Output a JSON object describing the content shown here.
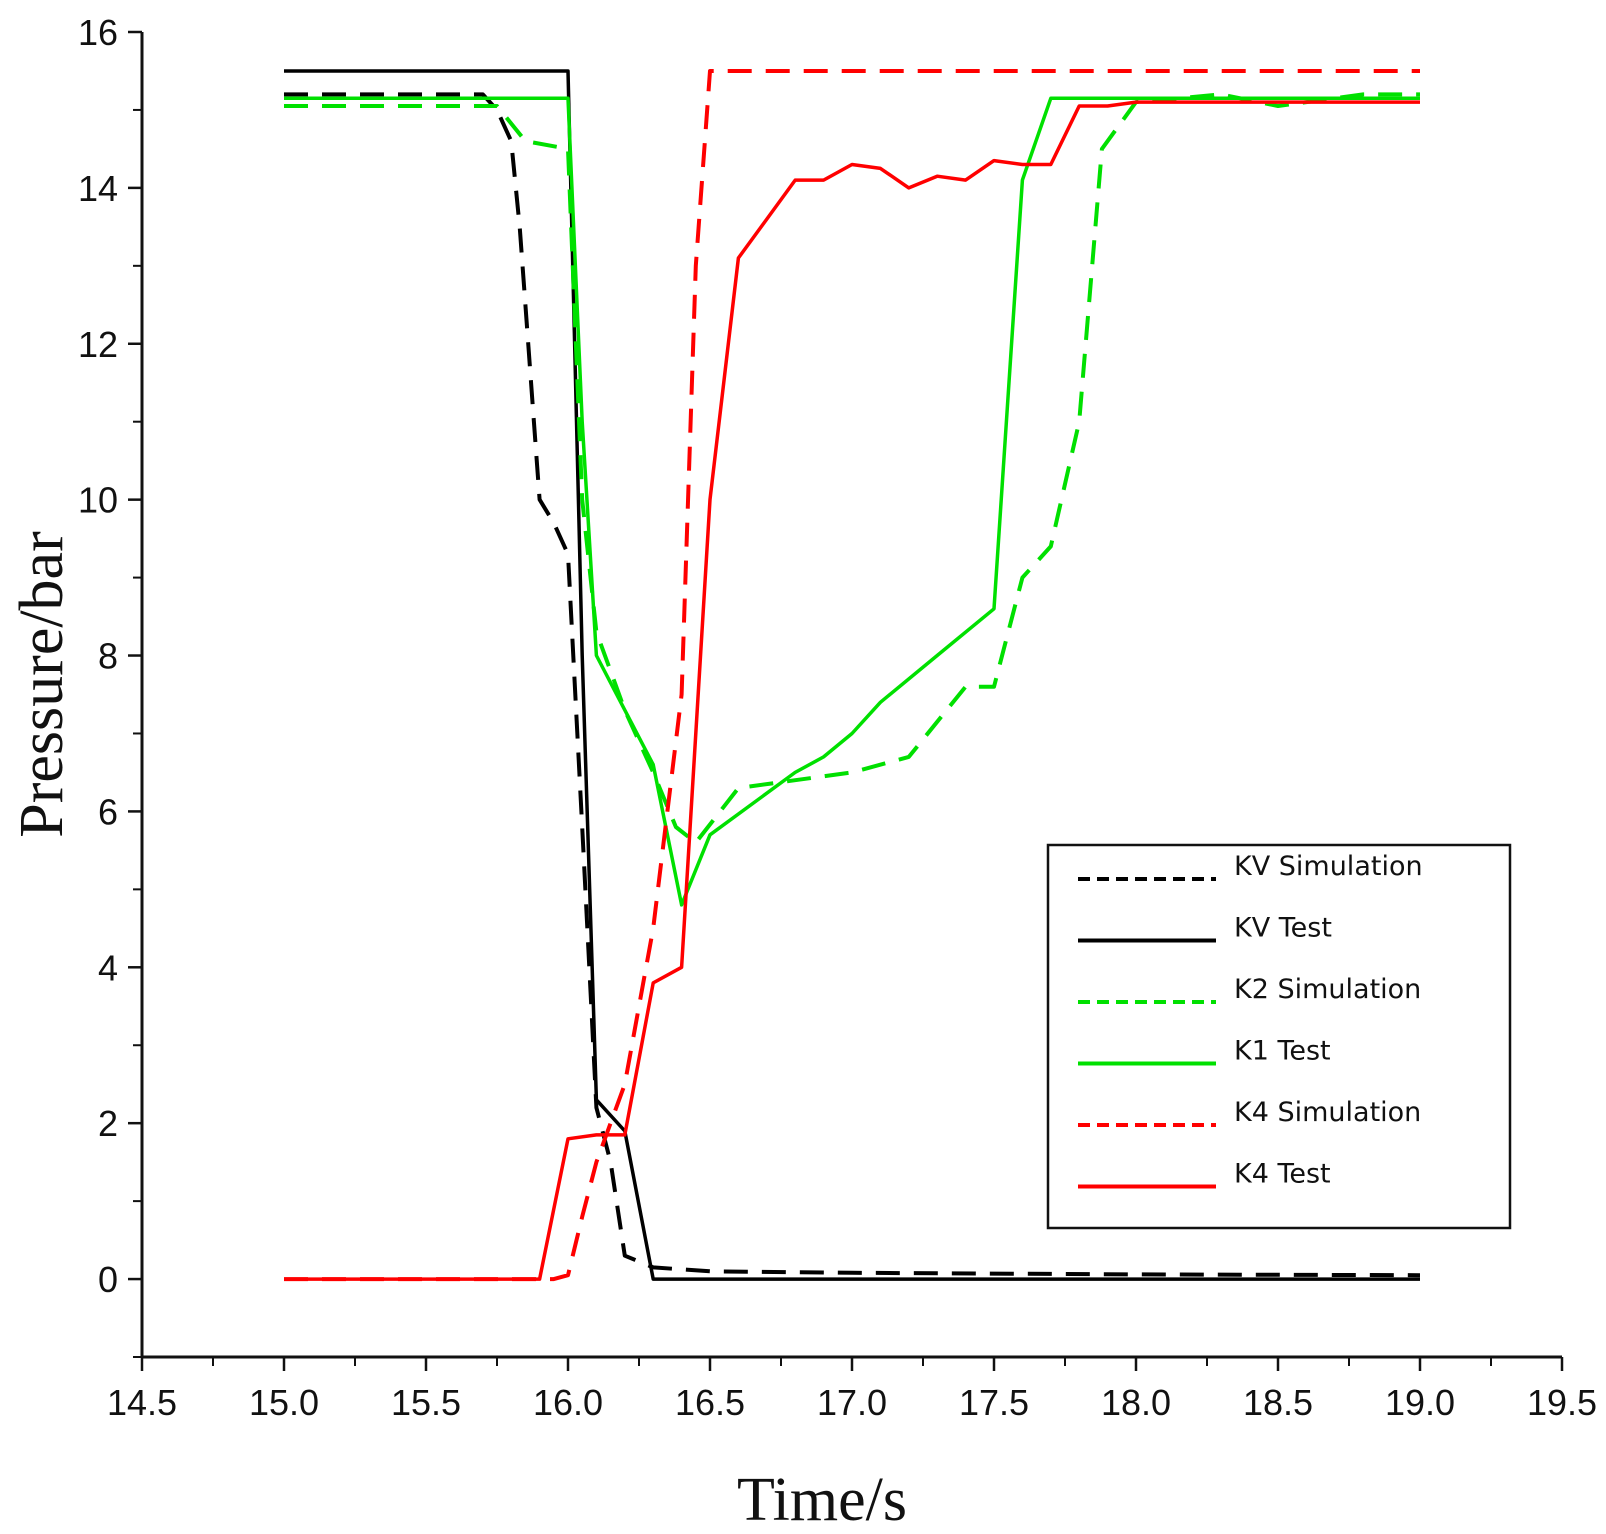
{
  "chart_data": {
    "type": "line",
    "title": "",
    "xlabel": "Time/s",
    "ylabel": "Pressure/bar",
    "xlim": [
      14.5,
      19.5
    ],
    "ylim": [
      -1,
      16
    ],
    "x_ticks": [
      14.5,
      15.0,
      15.5,
      16.0,
      16.5,
      17.0,
      17.5,
      18.0,
      18.5,
      19.0,
      19.5
    ],
    "x_tick_labels": [
      "14.5",
      "15.0",
      "15.5",
      "16.0",
      "16.5",
      "17.0",
      "17.5",
      "18.0",
      "18.5",
      "19.0",
      "19.5"
    ],
    "y_ticks": [
      0,
      2,
      4,
      6,
      8,
      10,
      12,
      14,
      16
    ],
    "y_tick_labels": [
      "0",
      "2",
      "4",
      "6",
      "8",
      "10",
      "12",
      "14",
      "16"
    ],
    "grid": false,
    "legend_position": "bottom-right",
    "series": [
      {
        "name": "KV Simulation",
        "color": "#000000",
        "style": "dashed",
        "points": [
          [
            15.0,
            15.2
          ],
          [
            15.7,
            15.2
          ],
          [
            15.75,
            15.0
          ],
          [
            15.8,
            14.6
          ],
          [
            15.83,
            13.5
          ],
          [
            15.85,
            12.5
          ],
          [
            15.88,
            11.0
          ],
          [
            15.9,
            10.0
          ],
          [
            15.95,
            9.7
          ],
          [
            16.0,
            9.3
          ],
          [
            16.05,
            5.8
          ],
          [
            16.1,
            2.2
          ],
          [
            16.15,
            1.5
          ],
          [
            16.2,
            0.3
          ],
          [
            16.3,
            0.15
          ],
          [
            16.5,
            0.1
          ],
          [
            17.0,
            0.08
          ],
          [
            18.0,
            0.06
          ],
          [
            19.0,
            0.05
          ]
        ]
      },
      {
        "name": "KV Test",
        "color": "#000000",
        "style": "solid",
        "points": [
          [
            15.0,
            15.5
          ],
          [
            16.0,
            15.5
          ],
          [
            16.05,
            8.0
          ],
          [
            16.1,
            2.3
          ],
          [
            16.2,
            1.9
          ],
          [
            16.3,
            0.0
          ],
          [
            17.0,
            0.0
          ],
          [
            18.0,
            0.0
          ],
          [
            19.0,
            0.0
          ]
        ]
      },
      {
        "name": "K2 Simulation",
        "color": "#00e000",
        "style": "dashed",
        "points": [
          [
            15.0,
            15.05
          ],
          [
            15.75,
            15.05
          ],
          [
            15.85,
            14.6
          ],
          [
            16.0,
            14.5
          ],
          [
            16.05,
            10.0
          ],
          [
            16.1,
            8.3
          ],
          [
            16.2,
            7.3
          ],
          [
            16.3,
            6.5
          ],
          [
            16.38,
            5.8
          ],
          [
            16.45,
            5.6
          ],
          [
            16.6,
            6.3
          ],
          [
            16.8,
            6.4
          ],
          [
            17.0,
            6.5
          ],
          [
            17.2,
            6.7
          ],
          [
            17.4,
            7.6
          ],
          [
            17.5,
            7.6
          ],
          [
            17.6,
            9.0
          ],
          [
            17.7,
            9.4
          ],
          [
            17.8,
            11.0
          ],
          [
            17.88,
            14.5
          ],
          [
            18.0,
            15.1
          ],
          [
            18.3,
            15.2
          ],
          [
            18.5,
            15.05
          ],
          [
            18.8,
            15.2
          ],
          [
            19.0,
            15.2
          ]
        ]
      },
      {
        "name": "K1 Test",
        "color": "#00e000",
        "style": "solid",
        "points": [
          [
            15.0,
            15.15
          ],
          [
            16.0,
            15.15
          ],
          [
            16.05,
            11.0
          ],
          [
            16.1,
            8.0
          ],
          [
            16.2,
            7.3
          ],
          [
            16.3,
            6.6
          ],
          [
            16.4,
            4.8
          ],
          [
            16.5,
            5.7
          ],
          [
            16.8,
            6.5
          ],
          [
            16.9,
            6.7
          ],
          [
            17.0,
            7.0
          ],
          [
            17.1,
            7.4
          ],
          [
            17.3,
            8.0
          ],
          [
            17.5,
            8.6
          ],
          [
            17.6,
            14.1
          ],
          [
            17.7,
            15.15
          ],
          [
            18.0,
            15.15
          ],
          [
            19.0,
            15.15
          ]
        ]
      },
      {
        "name": "K4 Simulation",
        "color": "#ff0000",
        "style": "dashed",
        "points": [
          [
            15.0,
            0.0
          ],
          [
            15.9,
            0.0
          ],
          [
            15.95,
            0.0
          ],
          [
            16.0,
            0.05
          ],
          [
            16.05,
            0.8
          ],
          [
            16.1,
            1.5
          ],
          [
            16.2,
            2.5
          ],
          [
            16.3,
            4.5
          ],
          [
            16.4,
            7.5
          ],
          [
            16.45,
            13.0
          ],
          [
            16.5,
            15.5
          ],
          [
            17.0,
            15.5
          ],
          [
            18.0,
            15.5
          ],
          [
            19.0,
            15.5
          ]
        ]
      },
      {
        "name": "K4 Test",
        "color": "#ff0000",
        "style": "solid",
        "points": [
          [
            15.0,
            0.0
          ],
          [
            15.9,
            0.0
          ],
          [
            16.0,
            1.8
          ],
          [
            16.1,
            1.85
          ],
          [
            16.2,
            1.85
          ],
          [
            16.3,
            3.8
          ],
          [
            16.4,
            4.0
          ],
          [
            16.5,
            10.0
          ],
          [
            16.6,
            13.1
          ],
          [
            16.7,
            13.6
          ],
          [
            16.8,
            14.1
          ],
          [
            16.9,
            14.1
          ],
          [
            17.0,
            14.3
          ],
          [
            17.1,
            14.25
          ],
          [
            17.2,
            14.0
          ],
          [
            17.3,
            14.15
          ],
          [
            17.4,
            14.1
          ],
          [
            17.5,
            14.35
          ],
          [
            17.6,
            14.3
          ],
          [
            17.7,
            14.3
          ],
          [
            17.8,
            15.05
          ],
          [
            17.9,
            15.05
          ],
          [
            18.0,
            15.1
          ],
          [
            18.5,
            15.1
          ],
          [
            18.9,
            15.1
          ],
          [
            19.0,
            15.1
          ]
        ]
      }
    ]
  }
}
